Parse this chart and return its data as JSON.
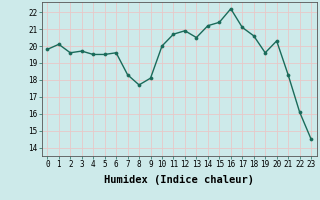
{
  "x": [
    0,
    1,
    2,
    3,
    4,
    5,
    6,
    7,
    8,
    9,
    10,
    11,
    12,
    13,
    14,
    15,
    16,
    17,
    18,
    19,
    20,
    21,
    22,
    23
  ],
  "y": [
    19.8,
    20.1,
    19.6,
    19.7,
    19.5,
    19.5,
    19.6,
    18.3,
    17.7,
    18.1,
    20.0,
    20.7,
    20.9,
    20.5,
    21.2,
    21.4,
    22.2,
    21.1,
    20.6,
    19.6,
    20.3,
    18.3,
    16.1,
    14.5
  ],
  "line_color": "#1a6b5a",
  "marker": "o",
  "marker_size": 2.2,
  "linewidth": 1.0,
  "xlabel": "Humidex (Indice chaleur)",
  "xlim": [
    -0.5,
    23.5
  ],
  "ylim": [
    13.5,
    22.6
  ],
  "yticks": [
    14,
    15,
    16,
    17,
    18,
    19,
    20,
    21,
    22
  ],
  "xticks": [
    0,
    1,
    2,
    3,
    4,
    5,
    6,
    7,
    8,
    9,
    10,
    11,
    12,
    13,
    14,
    15,
    16,
    17,
    18,
    19,
    20,
    21,
    22,
    23
  ],
  "background_color": "#cdeaea",
  "grid_color": "#e8c8c8",
  "tick_fontsize": 5.5,
  "xlabel_fontsize": 7.5
}
